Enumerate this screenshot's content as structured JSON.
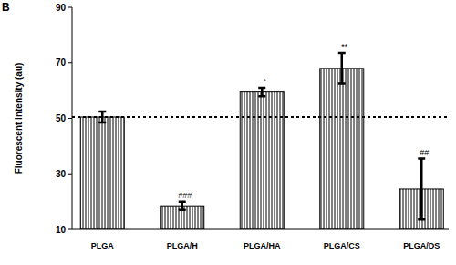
{
  "chart_data": {
    "type": "bar",
    "title": "B",
    "y_label": "Fluorescent intensity (au)",
    "categories": [
      "PLGA",
      "PLGA/H",
      "PLGA/HA",
      "PLGA/CS",
      "PLGA/DS"
    ],
    "values": [
      50.5,
      18.5,
      59.5,
      68,
      24.5
    ],
    "errors": [
      2,
      1.5,
      1.5,
      5.5,
      11
    ],
    "annotations": [
      null,
      "###",
      "*",
      "**",
      "##"
    ],
    "reference_line": 50.5,
    "color": "#000000",
    "ylim": [
      10,
      90
    ],
    "yticks": [
      10,
      30,
      50,
      70,
      90
    ],
    "grid": false
  }
}
